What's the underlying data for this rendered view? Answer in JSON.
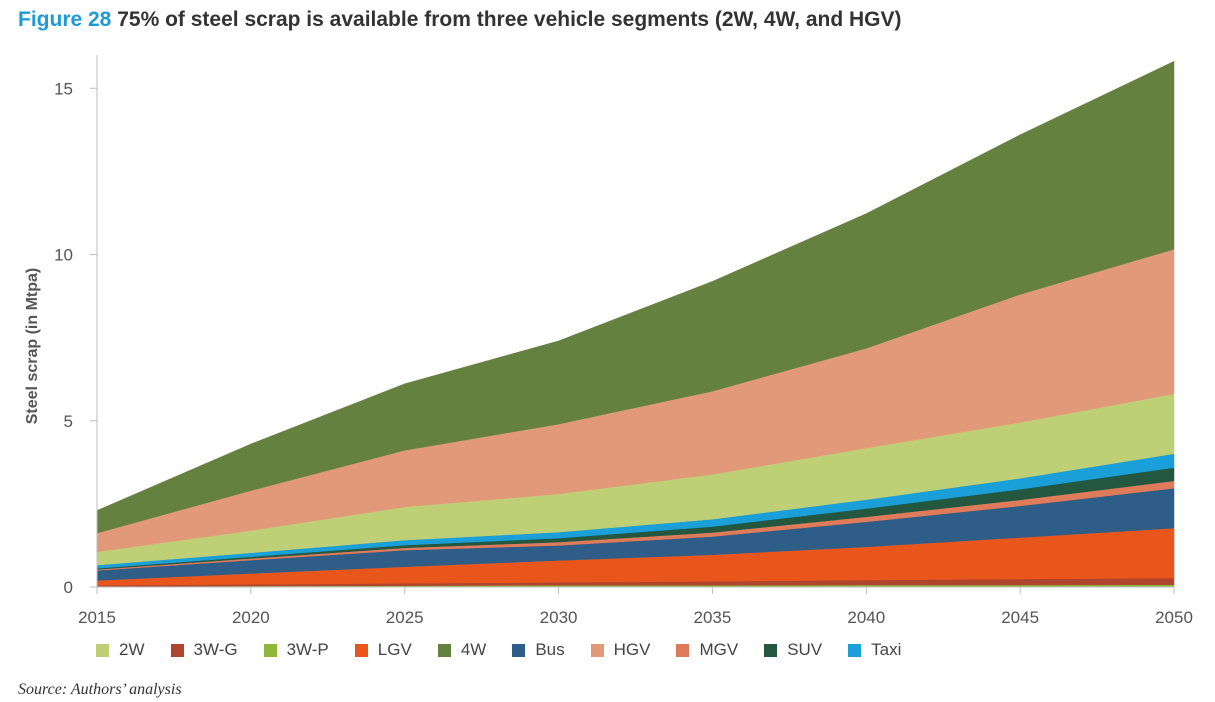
{
  "figure": {
    "label": "Figure 28",
    "title": "75% of steel scrap is available from three vehicle segments (2W, 4W, and HGV)",
    "source": "Source: Authors’ analysis"
  },
  "chart_data": {
    "type": "area",
    "stacked": true,
    "ylabel": "Steel scrap (in Mtpa)",
    "xlabel": "",
    "xlim": [
      2015,
      2050
    ],
    "ylim": [
      0,
      16
    ],
    "x_ticks": [
      2015,
      2020,
      2025,
      2030,
      2035,
      2040,
      2045,
      2050
    ],
    "y_ticks": [
      0,
      5,
      10,
      15
    ],
    "grid": false,
    "legend_position": "bottom",
    "x": [
      2015,
      2020,
      2025,
      2030,
      2035,
      2040,
      2045,
      2050
    ],
    "series": [
      {
        "name": "3W-P",
        "color": "#8db83a",
        "values": [
          0.02,
          0.03,
          0.04,
          0.05,
          0.05,
          0.06,
          0.06,
          0.07
        ]
      },
      {
        "name": "3W-G",
        "color": "#b0452e",
        "values": [
          0.03,
          0.05,
          0.07,
          0.09,
          0.12,
          0.15,
          0.18,
          0.2
        ]
      },
      {
        "name": "LGV",
        "color": "#e8561c",
        "values": [
          0.15,
          0.33,
          0.5,
          0.66,
          0.8,
          1.0,
          1.25,
          1.5
        ]
      },
      {
        "name": "Bus",
        "color": "#2e5d87",
        "values": [
          0.3,
          0.4,
          0.5,
          0.45,
          0.55,
          0.75,
          0.95,
          1.2
        ]
      },
      {
        "name": "MGV",
        "color": "#e07b5a",
        "values": [
          0.03,
          0.05,
          0.07,
          0.1,
          0.12,
          0.15,
          0.18,
          0.22
        ]
      },
      {
        "name": "SUV",
        "color": "#23573f",
        "values": [
          0.03,
          0.05,
          0.08,
          0.12,
          0.18,
          0.25,
          0.32,
          0.4
        ]
      },
      {
        "name": "Taxi",
        "color": "#1a9fd9",
        "values": [
          0.1,
          0.12,
          0.15,
          0.18,
          0.22,
          0.27,
          0.33,
          0.42
        ]
      },
      {
        "name": "2W",
        "color": "#bfcf76",
        "values": [
          0.4,
          0.67,
          1.0,
          1.15,
          1.35,
          1.55,
          1.68,
          1.8
        ]
      },
      {
        "name": "HGV",
        "color": "#e29979",
        "values": [
          0.56,
          1.2,
          1.7,
          2.1,
          2.5,
          3.0,
          3.85,
          4.35
        ]
      },
      {
        "name": "4W",
        "color": "#658140",
        "values": [
          0.68,
          1.4,
          2.0,
          2.5,
          3.3,
          4.05,
          4.8,
          5.65
        ]
      }
    ],
    "legend_order": [
      "2W",
      "3W-G",
      "3W-P",
      "LGV",
      "4W",
      "Bus",
      "HGV",
      "MGV",
      "SUV",
      "Taxi"
    ]
  }
}
